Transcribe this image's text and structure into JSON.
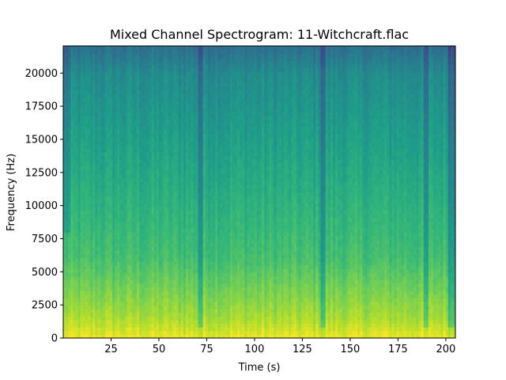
{
  "chart_data": {
    "type": "heatmap",
    "title": "Mixed Channel Spectrogram: 11-Witchcraft.flac",
    "xlabel": "Time (s)",
    "ylabel": "Frequency (Hz)",
    "xlim": [
      0,
      205
    ],
    "ylim": [
      0,
      22050
    ],
    "xticks": [
      25,
      50,
      75,
      100,
      125,
      150,
      175,
      200
    ],
    "yticks": [
      0,
      2500,
      5000,
      7500,
      10000,
      12500,
      15000,
      17500,
      20000
    ],
    "colormap": "viridis",
    "grid": false,
    "quiet_segments_s": [
      [
        70,
        73
      ],
      [
        134,
        137
      ],
      [
        188,
        191
      ],
      [
        201,
        205
      ]
    ]
  }
}
